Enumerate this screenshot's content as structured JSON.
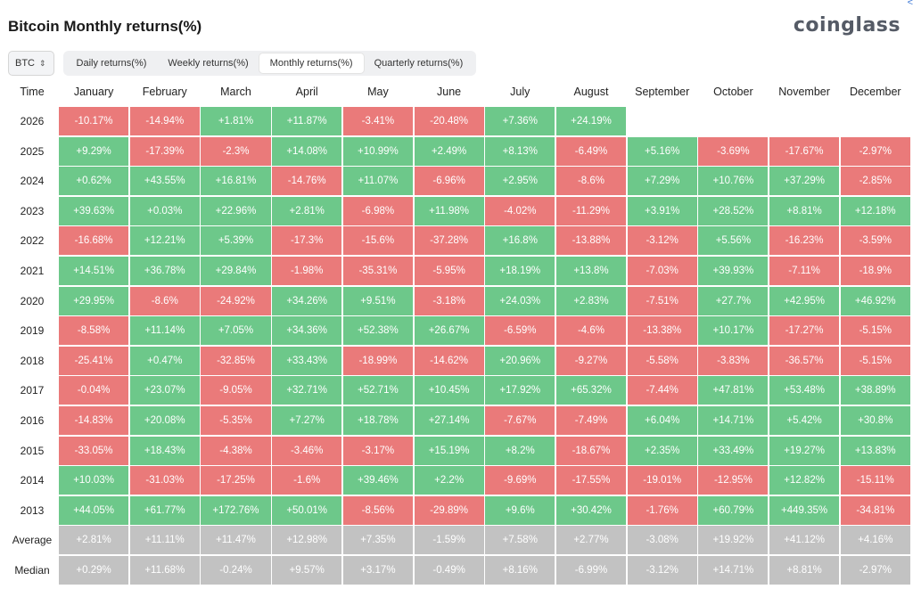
{
  "title": "Bitcoin Monthly returns(%)",
  "logo": "coinglass",
  "asset": "BTC",
  "tabs": [
    "Daily returns(%)",
    "Weekly returns(%)",
    "Monthly returns(%)",
    "Quarterly returns(%)"
  ],
  "active_tab": 2,
  "colors": {
    "positive": "#6dc88a",
    "negative": "#ea7a7a",
    "summary": "#c2c2c2"
  },
  "chart_data": {
    "type": "table",
    "title": "Bitcoin Monthly returns(%)",
    "corner_label": "Time",
    "columns": [
      "January",
      "February",
      "March",
      "April",
      "May",
      "June",
      "July",
      "August",
      "September",
      "October",
      "November",
      "December"
    ],
    "rows": [
      {
        "label": "2026",
        "values": [
          "-10.17%",
          "-14.94%",
          "+1.81%",
          "+11.87%",
          "-3.41%",
          "-20.48%",
          "+7.36%",
          "+24.19%",
          "",
          "",
          "",
          ""
        ]
      },
      {
        "label": "2025",
        "values": [
          "+9.29%",
          "-17.39%",
          "-2.3%",
          "+14.08%",
          "+10.99%",
          "+2.49%",
          "+8.13%",
          "-6.49%",
          "+5.16%",
          "-3.69%",
          "-17.67%",
          "-2.97%"
        ]
      },
      {
        "label": "2024",
        "values": [
          "+0.62%",
          "+43.55%",
          "+16.81%",
          "-14.76%",
          "+11.07%",
          "-6.96%",
          "+2.95%",
          "-8.6%",
          "+7.29%",
          "+10.76%",
          "+37.29%",
          "-2.85%"
        ]
      },
      {
        "label": "2023",
        "values": [
          "+39.63%",
          "+0.03%",
          "+22.96%",
          "+2.81%",
          "-6.98%",
          "+11.98%",
          "-4.02%",
          "-11.29%",
          "+3.91%",
          "+28.52%",
          "+8.81%",
          "+12.18%"
        ]
      },
      {
        "label": "2022",
        "values": [
          "-16.68%",
          "+12.21%",
          "+5.39%",
          "-17.3%",
          "-15.6%",
          "-37.28%",
          "+16.8%",
          "-13.88%",
          "-3.12%",
          "+5.56%",
          "-16.23%",
          "-3.59%"
        ]
      },
      {
        "label": "2021",
        "values": [
          "+14.51%",
          "+36.78%",
          "+29.84%",
          "-1.98%",
          "-35.31%",
          "-5.95%",
          "+18.19%",
          "+13.8%",
          "-7.03%",
          "+39.93%",
          "-7.11%",
          "-18.9%"
        ]
      },
      {
        "label": "2020",
        "values": [
          "+29.95%",
          "-8.6%",
          "-24.92%",
          "+34.26%",
          "+9.51%",
          "-3.18%",
          "+24.03%",
          "+2.83%",
          "-7.51%",
          "+27.7%",
          "+42.95%",
          "+46.92%"
        ]
      },
      {
        "label": "2019",
        "values": [
          "-8.58%",
          "+11.14%",
          "+7.05%",
          "+34.36%",
          "+52.38%",
          "+26.67%",
          "-6.59%",
          "-4.6%",
          "-13.38%",
          "+10.17%",
          "-17.27%",
          "-5.15%"
        ]
      },
      {
        "label": "2018",
        "values": [
          "-25.41%",
          "+0.47%",
          "-32.85%",
          "+33.43%",
          "-18.99%",
          "-14.62%",
          "+20.96%",
          "-9.27%",
          "-5.58%",
          "-3.83%",
          "-36.57%",
          "-5.15%"
        ]
      },
      {
        "label": "2017",
        "values": [
          "-0.04%",
          "+23.07%",
          "-9.05%",
          "+32.71%",
          "+52.71%",
          "+10.45%",
          "+17.92%",
          "+65.32%",
          "-7.44%",
          "+47.81%",
          "+53.48%",
          "+38.89%"
        ]
      },
      {
        "label": "2016",
        "values": [
          "-14.83%",
          "+20.08%",
          "-5.35%",
          "+7.27%",
          "+18.78%",
          "+27.14%",
          "-7.67%",
          "-7.49%",
          "+6.04%",
          "+14.71%",
          "+5.42%",
          "+30.8%"
        ]
      },
      {
        "label": "2015",
        "values": [
          "-33.05%",
          "+18.43%",
          "-4.38%",
          "-3.46%",
          "-3.17%",
          "+15.19%",
          "+8.2%",
          "-18.67%",
          "+2.35%",
          "+33.49%",
          "+19.27%",
          "+13.83%"
        ]
      },
      {
        "label": "2014",
        "values": [
          "+10.03%",
          "-31.03%",
          "-17.25%",
          "-1.6%",
          "+39.46%",
          "+2.2%",
          "-9.69%",
          "-17.55%",
          "-19.01%",
          "-12.95%",
          "+12.82%",
          "-15.11%"
        ]
      },
      {
        "label": "2013",
        "values": [
          "+44.05%",
          "+61.77%",
          "+172.76%",
          "+50.01%",
          "-8.56%",
          "-29.89%",
          "+9.6%",
          "+30.42%",
          "-1.76%",
          "+60.79%",
          "+449.35%",
          "-34.81%"
        ]
      },
      {
        "label": "Average",
        "summary": true,
        "values": [
          "+2.81%",
          "+11.11%",
          "+11.47%",
          "+12.98%",
          "+7.35%",
          "-1.59%",
          "+7.58%",
          "+2.77%",
          "-3.08%",
          "+19.92%",
          "+41.12%",
          "+4.16%"
        ]
      },
      {
        "label": "Median",
        "summary": true,
        "values": [
          "+0.29%",
          "+11.68%",
          "-0.24%",
          "+9.57%",
          "+3.17%",
          "-0.49%",
          "+8.16%",
          "-6.99%",
          "-3.12%",
          "+14.71%",
          "+8.81%",
          "-2.97%"
        ]
      }
    ]
  }
}
